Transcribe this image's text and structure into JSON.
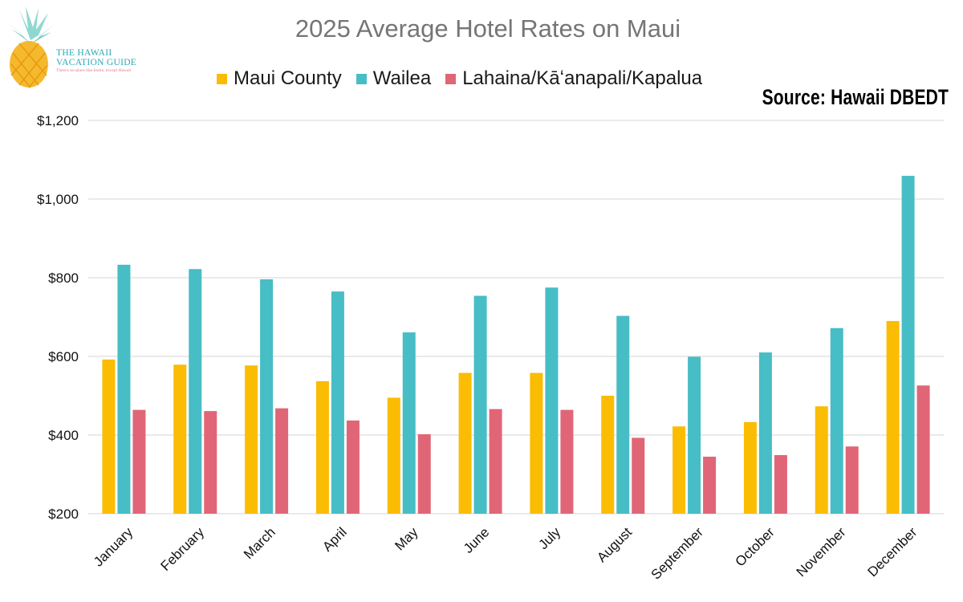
{
  "logo": {
    "line1": "THE HAWAII",
    "line2": "VACATION GUIDE",
    "tagline": "There's no place like home, except Hawaii"
  },
  "source": "Source: Hawaii DBEDT",
  "colors": {
    "Maui County": "#FBBC04",
    "Wailea": "#47BDC6",
    "Lahaina/Kāʻanapali/Kapalua": "#E06677",
    "grid": "#d4d4d4",
    "title": "#757575"
  },
  "chart_data": {
    "type": "bar",
    "title": "2025 Average Hotel Rates on Maui",
    "xlabel": "",
    "ylabel": "",
    "ylim": [
      200,
      1200
    ],
    "yticks": [
      200,
      400,
      600,
      800,
      1000,
      1200
    ],
    "ytick_labels": [
      "$200",
      "$400",
      "$600",
      "$800",
      "$1,000",
      "$1,200"
    ],
    "grid": true,
    "legend_position": "top",
    "categories": [
      "January",
      "February",
      "March",
      "April",
      "May",
      "June",
      "July",
      "August",
      "September",
      "October",
      "November",
      "December"
    ],
    "series": [
      {
        "name": "Maui County",
        "values": [
          592,
          579,
          577,
          537,
          495,
          558,
          558,
          500,
          422,
          433,
          473,
          690
        ]
      },
      {
        "name": "Wailea",
        "values": [
          833,
          822,
          796,
          765,
          661,
          754,
          775,
          703,
          599,
          610,
          672,
          1059
        ]
      },
      {
        "name": "Lahaina/Kāʻanapali/Kapalua",
        "values": [
          464,
          461,
          468,
          437,
          402,
          466,
          464,
          393,
          345,
          349,
          371,
          526
        ]
      }
    ]
  }
}
